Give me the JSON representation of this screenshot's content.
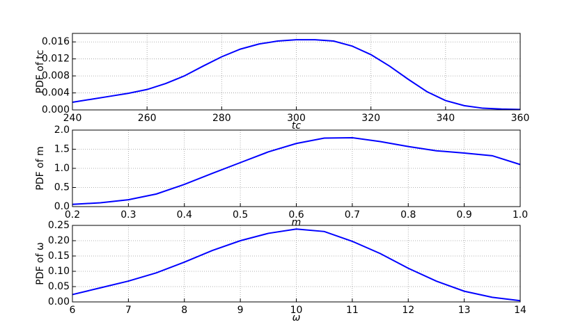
{
  "chart_data": [
    {
      "type": "line",
      "xlabel": "tc",
      "ylabel": "PDF of tc",
      "x": [
        240,
        245,
        250,
        255,
        260,
        265,
        270,
        275,
        280,
        285,
        290,
        295,
        300,
        305,
        310,
        315,
        320,
        325,
        330,
        335,
        340,
        345,
        350,
        355,
        360
      ],
      "series": [
        {
          "color": "#0000ff",
          "values": [
            0.0018,
            0.0025,
            0.0032,
            0.0039,
            0.0048,
            0.0062,
            0.008,
            0.0103,
            0.0125,
            0.0143,
            0.0155,
            0.0162,
            0.0165,
            0.0165,
            0.0162,
            0.015,
            0.013,
            0.0103,
            0.0072,
            0.0043,
            0.0022,
            0.001,
            0.0004,
            0.0002,
            0.0001
          ]
        }
      ],
      "xlim": [
        240,
        360
      ],
      "xticks": [
        240,
        260,
        280,
        300,
        320,
        340,
        360
      ],
      "ylim": [
        0,
        0.018
      ],
      "yticks": [
        {
          "value": 0,
          "label": "0.000"
        },
        {
          "value": 0.004,
          "label": "0.004"
        },
        {
          "value": 0.008,
          "label": "0.008"
        },
        {
          "value": 0.012,
          "label": "0.012"
        },
        {
          "value": 0.016,
          "label": "0.016"
        }
      ],
      "grid": true
    },
    {
      "type": "line",
      "xlabel": "m",
      "ylabel": "PDF of m",
      "x": [
        0.2,
        0.25,
        0.3,
        0.35,
        0.4,
        0.45,
        0.5,
        0.55,
        0.6,
        0.65,
        0.7,
        0.75,
        0.8,
        0.85,
        0.9,
        0.95,
        1.0
      ],
      "series": [
        {
          "color": "#0000ff",
          "values": [
            0.06,
            0.1,
            0.18,
            0.33,
            0.58,
            0.87,
            1.15,
            1.43,
            1.65,
            1.79,
            1.8,
            1.7,
            1.57,
            1.46,
            1.4,
            1.33,
            1.1
          ]
        }
      ],
      "xlim": [
        0.2,
        1.0
      ],
      "xticks": [
        0.2,
        0.3,
        0.4,
        0.5,
        0.6,
        0.7,
        0.8,
        0.9,
        {
          "value": 1,
          "label": "1.0"
        }
      ],
      "ylim": [
        0,
        2
      ],
      "yticks": [
        {
          "value": 0,
          "label": "0.0"
        },
        0.5,
        {
          "value": 1,
          "label": "1.0"
        },
        1.5,
        {
          "value": 2,
          "label": "2.0"
        }
      ],
      "grid": true
    },
    {
      "type": "line",
      "xlabel": "ω",
      "ylabel": "PDF of ω",
      "x": [
        6,
        6.5,
        7,
        7.5,
        8,
        8.5,
        9,
        9.5,
        10,
        10.5,
        11,
        11.5,
        12,
        12.5,
        13,
        13.5,
        14
      ],
      "series": [
        {
          "color": "#0000ff",
          "values": [
            0.024,
            0.046,
            0.068,
            0.095,
            0.13,
            0.168,
            0.2,
            0.224,
            0.238,
            0.23,
            0.198,
            0.158,
            0.11,
            0.068,
            0.035,
            0.015,
            0.004
          ]
        }
      ],
      "xlim": [
        6,
        14
      ],
      "xticks": [
        6,
        7,
        8,
        9,
        10,
        11,
        12,
        13,
        14
      ],
      "ylim": [
        0,
        0.25
      ],
      "yticks": [
        {
          "value": 0,
          "label": "0.00"
        },
        0.05,
        {
          "value": 0.1,
          "label": "0.10"
        },
        0.15,
        {
          "value": 0.2,
          "label": "0.20"
        },
        0.25
      ],
      "grid": true
    }
  ]
}
